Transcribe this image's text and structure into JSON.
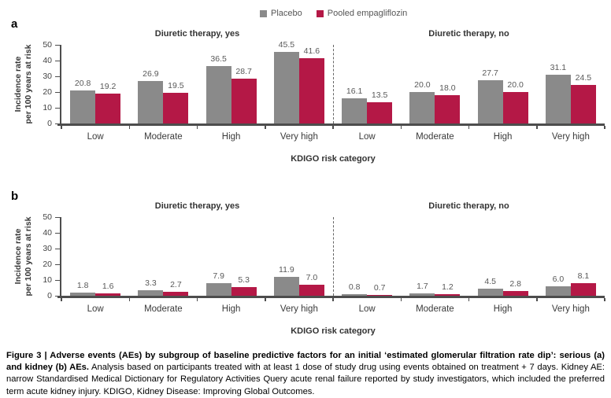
{
  "legend": {
    "items": [
      {
        "label": "Placebo",
        "color": "#8a8a8a"
      },
      {
        "label": "Pooled empagliflozin",
        "color": "#b41846"
      }
    ]
  },
  "colors": {
    "placebo": "#8a8a8a",
    "empagliflozin": "#b41846",
    "axis": "#4d4d4d",
    "value_label": "#595959"
  },
  "chart_data": [
    {
      "type": "bar",
      "panel_label": "a",
      "ylabel_line1": "Incidence rate",
      "ylabel_line2": "per 100 years at risk",
      "xlabel": "KDIGO risk category",
      "ylim": [
        0,
        50
      ],
      "yticks": [
        0,
        10,
        20,
        30,
        40,
        50
      ],
      "legend_position": "top",
      "grid": false,
      "subpanels": [
        {
          "title": "Diuretic therapy, yes",
          "categories": [
            "Low",
            "Moderate",
            "High",
            "Very high"
          ],
          "series": [
            {
              "name": "Placebo",
              "values": [
                20.8,
                26.9,
                36.5,
                45.5
              ]
            },
            {
              "name": "Pooled empagliflozin",
              "values": [
                19.2,
                19.5,
                28.7,
                41.6
              ]
            }
          ]
        },
        {
          "title": "Diuretic therapy, no",
          "categories": [
            "Low",
            "Moderate",
            "High",
            "Very high"
          ],
          "series": [
            {
              "name": "Placebo",
              "values": [
                16.1,
                20.0,
                27.7,
                31.1
              ]
            },
            {
              "name": "Pooled empagliflozin",
              "values": [
                13.5,
                18.0,
                20.0,
                24.5
              ]
            }
          ]
        }
      ]
    },
    {
      "type": "bar",
      "panel_label": "b",
      "ylabel_line1": "Incidence rate",
      "ylabel_line2": "per 100 years at risk",
      "xlabel": "KDIGO risk category",
      "ylim": [
        0,
        50
      ],
      "yticks": [
        0,
        10,
        20,
        30,
        40,
        50
      ],
      "legend_position": "top",
      "grid": false,
      "subpanels": [
        {
          "title": "Diuretic therapy, yes",
          "categories": [
            "Low",
            "Moderate",
            "High",
            "Very high"
          ],
          "series": [
            {
              "name": "Placebo",
              "values": [
                1.8,
                3.3,
                7.9,
                11.9
              ]
            },
            {
              "name": "Pooled empagliflozin",
              "values": [
                1.6,
                2.7,
                5.3,
                7.0
              ]
            }
          ]
        },
        {
          "title": "Diuretic therapy, no",
          "categories": [
            "Low",
            "Moderate",
            "High",
            "Very high"
          ],
          "series": [
            {
              "name": "Placebo",
              "values": [
                0.8,
                1.7,
                4.5,
                6.0
              ]
            },
            {
              "name": "Pooled empagliflozin",
              "values": [
                0.7,
                1.2,
                2.8,
                8.1
              ]
            }
          ]
        }
      ]
    }
  ],
  "caption": {
    "bold": "Figure 3 | Adverse events (AEs) by subgroup of baseline predictive factors for an initial ‘estimated glomerular filtration rate dip’: serious (a) and kidney (b) AEs.",
    "regular": " Analysis based on participants treated with at least 1 dose of study drug using events obtained on treatment + 7 days. Kidney AE: narrow Standardised Medical Dictionary for Regulatory Activities Query acute renal failure reported by study investigators, which included the preferred term acute kidney injury. KDIGO, Kidney Disease: Improving Global Outcomes."
  }
}
